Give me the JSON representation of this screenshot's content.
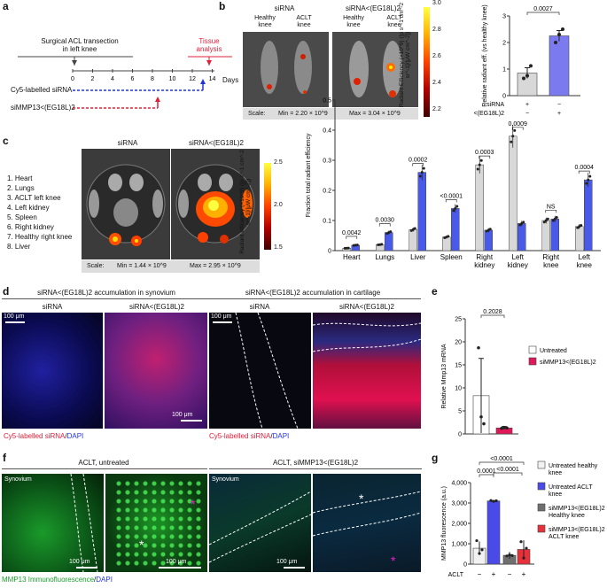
{
  "panel_labels": {
    "a": "a",
    "b": "b",
    "c": "c",
    "d": "d",
    "e": "e",
    "f": "f",
    "g": "g"
  },
  "panel_a": {
    "event_acl": "Surgical ACL transection",
    "event_acl2": "in left knee",
    "tissue": "Tissue",
    "tissue2": "analysis",
    "days_label": "Days",
    "ticks": [
      "0",
      "2",
      "4",
      "6",
      "8",
      "10",
      "12",
      "14"
    ],
    "row1_label": "Cy5-labelled siRNA",
    "row2_label": "siMMP13<(EG18L)2",
    "colors": {
      "blue": "#2233dd",
      "red": "#e0203a"
    }
  },
  "panel_b": {
    "col1_title": "siRNA",
    "col2_title": "siRNA<(EG18L)2",
    "healthy": "Healthy",
    "knee": "knee",
    "aclt": "ACLT",
    "scale_label": "Scale:",
    "scale_min": "Min = 2.20 × 10^9",
    "scale_max": "Max = 3.04 × 10^9",
    "colorbar_label": "Radiant Efficiency (×10^9) ([p s^-1 cm^-2 sr^-1]/[μW cm^-2])",
    "colorbar_ticks": [
      "3.0",
      "2.8",
      "2.6",
      "2.4",
      "2.2"
    ]
  },
  "panel_c": {
    "legend": [
      "1. Heart",
      "2. Lungs",
      "3. ACLT left knee",
      "4. Left kidney",
      "5. Spleen",
      "6. Right kidney",
      "7. Healthy right knee",
      "8. Liver"
    ],
    "col1_title": "siRNA",
    "col2_title": "siRNA<(EG18L)2",
    "scale_label": "Scale:",
    "scale_min": "Min = 1.44 × 10^9",
    "scale_max": "Max = 2.95 × 10^9",
    "colorbar_label": "Radiant efficiency (×10^9) ([p s^-1 cm^-2 sr^-1]/[μW cm^-2])",
    "colorbar_ticks": [
      "2.5",
      "2.0",
      "1.5"
    ]
  },
  "panel_d": {
    "title_left": "siRNA<(EG18L)2 accumulation in synovium",
    "title_right": "siRNA<(EG18L)2 accumulation in cartilage",
    "col_sirna": "siRNA",
    "col_conj": "siRNA<(EG18L)2",
    "scalebar": "100 μm",
    "legend_red": "Cy5-labelled siRNA",
    "legend_sep": "/",
    "legend_blue": "DAPI"
  },
  "panel_f": {
    "title_left": "ACLT, untreated",
    "title_right": "ACLT, siMMP13<(EG18L)2",
    "synovium": "Synovium",
    "scalebar": "100 μm",
    "legend_green": "MMP13 Immunofluorescence",
    "legend_sep": "/",
    "legend_blue": "DAPI",
    "asterisk": "*"
  },
  "chart_data": [
    {
      "id": "b",
      "type": "bar",
      "categories": [
        "siRNA",
        "siRNA<(EG18L)2"
      ],
      "values": [
        0.85,
        2.25
      ],
      "errors": [
        0.2,
        0.2
      ],
      "points": [
        [
          0.65,
          0.75,
          1.12
        ],
        [
          2.0,
          2.3,
          2.5
        ]
      ],
      "colors": [
        "#d8d8d8",
        "#7b7bef"
      ],
      "ylabel": "Relative radiant eff. (vs healthy knee)",
      "ylim": [
        0,
        3
      ],
      "yticks": [
        "0",
        "1",
        "2",
        "3"
      ],
      "pvalue": "0.0027",
      "row_labels": [
        "siRNA",
        "siRNA<(EG18L)2"
      ],
      "row_marks": [
        [
          "+",
          "−"
        ],
        [
          "−",
          "+"
        ]
      ]
    },
    {
      "id": "c",
      "type": "bar",
      "categories": [
        "Heart",
        "Lungs",
        "Liver",
        "Spleen",
        "Right kidney",
        "Left kidney",
        "Right knee",
        "Left knee"
      ],
      "series": [
        {
          "name": "siRNA",
          "values": [
            0.008,
            0.02,
            0.07,
            0.045,
            0.285,
            0.38,
            0.1,
            0.08
          ],
          "color": "#d8d8d8"
        },
        {
          "name": "siRNA<(EG18L)2",
          "values": [
            0.018,
            0.06,
            0.26,
            0.14,
            0.068,
            0.09,
            0.105,
            0.235
          ],
          "color": "#4a5ae8"
        }
      ],
      "ylabel": "Fraction total radiant efficiency",
      "ylim": [
        0,
        0.5
      ],
      "yticks": [
        "0",
        "0.1",
        "0.2",
        "0.3",
        "0.4",
        "0.5"
      ],
      "pvalues": [
        "0.0042",
        "0.0030",
        "0.0002",
        "<0.0001",
        "0.0003",
        "0.0009",
        "NS",
        "0.0004"
      ]
    },
    {
      "id": "e",
      "type": "bar",
      "categories": [
        "Untreated",
        "siMMP13<(EG18L)2"
      ],
      "values": [
        8.3,
        1.3
      ],
      "errors": [
        8.1,
        0.3
      ],
      "points": [
        [
          18.7,
          3.7,
          2.2
        ],
        [
          1.2,
          1.4,
          1.3
        ]
      ],
      "colors": [
        "#ffffff",
        "#e0185a"
      ],
      "ylabel": "Relative Mmp13 mRNA",
      "ylim": [
        0,
        25
      ],
      "yticks": [
        "0",
        "5",
        "10",
        "15",
        "20",
        "25"
      ],
      "pvalue": "0.2028",
      "legend": [
        "Untreated",
        "siMMP13<(EG18L)2"
      ]
    },
    {
      "id": "g",
      "type": "bar",
      "categories": [
        "Untreated healthy knee",
        "Untreated ACLT knee",
        "siMMP13<(EG18L)2 Healthy knee",
        "siMMP13<(EG18L)2 ACLT knee"
      ],
      "values": [
        780,
        3100,
        430,
        720
      ],
      "errors": [
        330,
        40,
        170,
        450
      ],
      "points": [
        [
          1150,
          520,
          700
        ],
        [
          3120,
          3080,
          3110
        ],
        [
          400,
          450,
          420
        ],
        [
          1100,
          300,
          780
        ]
      ],
      "colors": [
        "#f2f2f2",
        "#4a4ae8",
        "#6f6f6f",
        "#e8303a"
      ],
      "ylabel": "MMP13 fluorescence (a.u.)",
      "ylim": [
        0,
        4000
      ],
      "yticks": [
        "0",
        "1,000",
        "2,000",
        "3,000",
        "4,000"
      ],
      "pvalues": [
        "0.0001",
        "<0.0001",
        "<0.0001"
      ],
      "aclt_label": "ACLT",
      "aclt_marks": [
        "−",
        "+",
        "−",
        "+"
      ],
      "legend": [
        "Untreated healthy knee",
        "Untreated ACLT knee",
        "siMMP13<(EG18L)2 Healthy knee",
        "siMMP13<(EG18L)2 ACLT knee"
      ]
    }
  ]
}
